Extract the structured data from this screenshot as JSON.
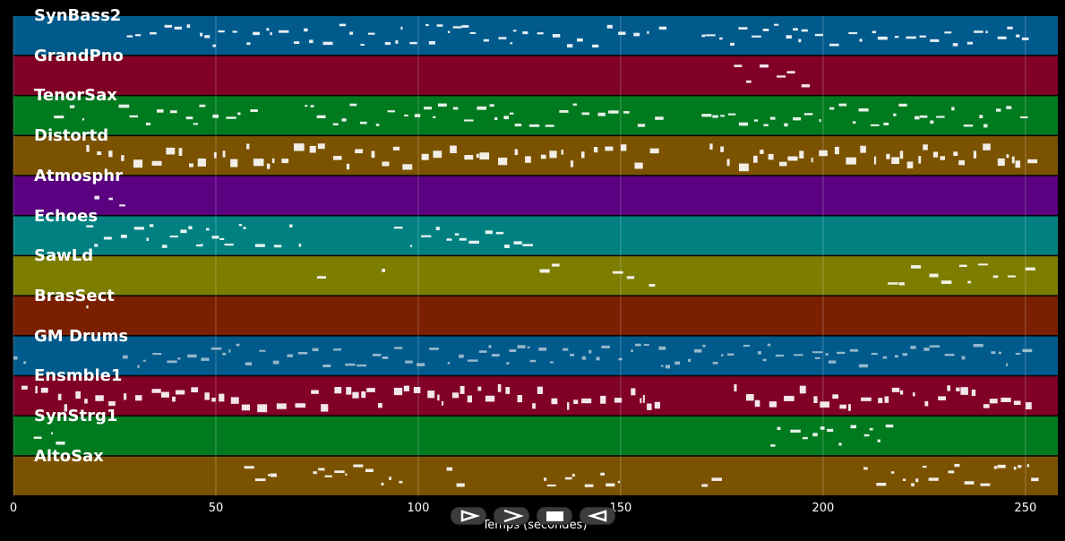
{
  "tracks": [
    {
      "name": "SynBass2",
      "color": "#005a8c"
    },
    {
      "name": "GrandPno",
      "color": "#800028"
    },
    {
      "name": "TenorSax",
      "color": "#007a1f"
    },
    {
      "name": "Distortd",
      "color": "#7a5200"
    },
    {
      "name": "Atmosphr",
      "color": "#5a0080"
    },
    {
      "name": "Echoes",
      "color": "#008080"
    },
    {
      "name": "SawLd",
      "color": "#7d7d00"
    },
    {
      "name": "BrasSect",
      "color": "#7a2000"
    },
    {
      "name": "GM Drums",
      "color": "#005a8c"
    },
    {
      "name": "Ensmble1",
      "color": "#800028"
    },
    {
      "name": "SynStrg1",
      "color": "#007a1f"
    },
    {
      "name": "AltoSax",
      "color": "#7a5200"
    }
  ],
  "axis": {
    "title": "Temps (secondes)",
    "ticks": [
      0,
      50,
      100,
      150,
      200,
      250
    ],
    "min": 0,
    "max": 258
  },
  "controls": [
    {
      "name": "play-button-icon",
      "label": "play"
    },
    {
      "name": "forward-button-icon",
      "label": "forward"
    },
    {
      "name": "stop-button-icon",
      "label": "stop"
    },
    {
      "name": "rewind-button-icon",
      "label": "rewind"
    }
  ]
}
